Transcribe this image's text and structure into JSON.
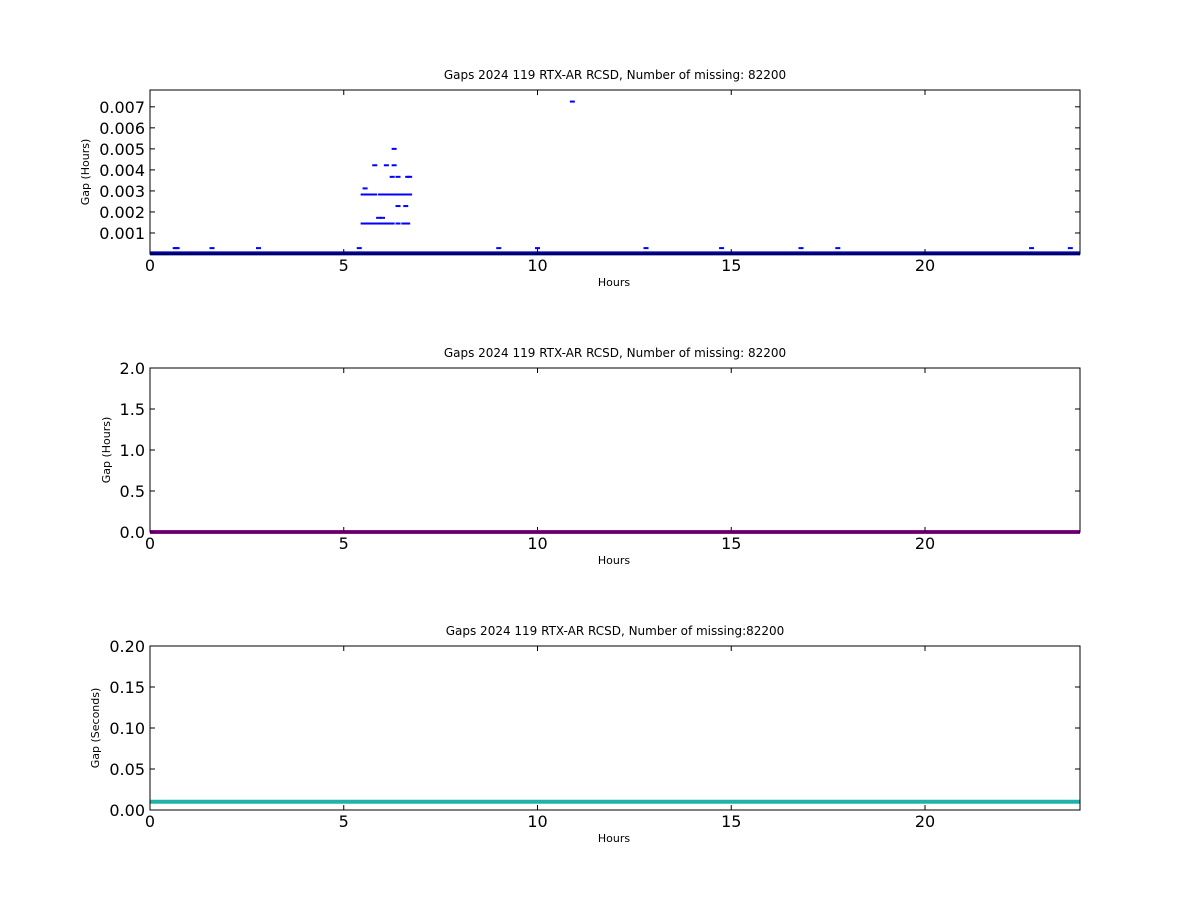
{
  "chart_data": [
    {
      "type": "scatter",
      "title": "Gaps 2024 119 RTX-AR  RCSD, Number of missing: 82200",
      "xlabel": "Hours",
      "ylabel": "Gap (Hours)",
      "xlim": [
        0,
        24
      ],
      "ylim": [
        0,
        0.0078
      ],
      "xticks": [
        0,
        5,
        10,
        15,
        20
      ],
      "xtick_labels": [
        "0",
        "5",
        "10",
        "15",
        "20"
      ],
      "yticks": [
        0.001,
        0.002,
        0.003,
        0.004,
        0.005,
        0.006,
        0.007
      ],
      "ytick_labels": [
        "0.001",
        "0.002",
        "0.003",
        "0.004",
        "0.005",
        "0.006",
        "0.007"
      ],
      "grid": false,
      "color": "#0000ff",
      "baseline": {
        "y": 3e-05,
        "x": [
          0,
          24
        ],
        "color": "#0000b0"
      },
      "points": [
        [
          0.65,
          0.00028
        ],
        [
          0.7,
          0.00028
        ],
        [
          1.6,
          0.00028
        ],
        [
          2.8,
          0.00028
        ],
        [
          5.4,
          0.00028
        ],
        [
          9.0,
          0.00028
        ],
        [
          10.0,
          0.00028
        ],
        [
          12.8,
          0.00028
        ],
        [
          14.75,
          0.00028
        ],
        [
          16.8,
          0.00028
        ],
        [
          17.75,
          0.00028
        ],
        [
          22.75,
          0.00028
        ],
        [
          23.75,
          0.00028
        ],
        [
          10.9,
          0.00725
        ],
        [
          6.3,
          0.005
        ],
        [
          5.8,
          0.00422
        ],
        [
          6.1,
          0.00422
        ],
        [
          6.3,
          0.00422
        ],
        [
          6.25,
          0.00367
        ],
        [
          6.4,
          0.00367
        ],
        [
          6.65,
          0.00367
        ],
        [
          6.7,
          0.00367
        ],
        [
          5.55,
          0.00312
        ],
        [
          5.5,
          0.00283
        ],
        [
          5.55,
          0.00283
        ],
        [
          5.6,
          0.00283
        ],
        [
          5.65,
          0.00283
        ],
        [
          5.7,
          0.00283
        ],
        [
          5.75,
          0.00283
        ],
        [
          5.8,
          0.00283
        ],
        [
          5.95,
          0.00283
        ],
        [
          6.0,
          0.00283
        ],
        [
          6.05,
          0.00283
        ],
        [
          6.1,
          0.00283
        ],
        [
          6.15,
          0.00283
        ],
        [
          6.2,
          0.00283
        ],
        [
          6.25,
          0.00283
        ],
        [
          6.3,
          0.00283
        ],
        [
          6.35,
          0.00283
        ],
        [
          6.4,
          0.00283
        ],
        [
          6.45,
          0.00283
        ],
        [
          6.5,
          0.00283
        ],
        [
          6.55,
          0.00283
        ],
        [
          6.6,
          0.00283
        ],
        [
          6.65,
          0.00283
        ],
        [
          6.7,
          0.00283
        ],
        [
          6.4,
          0.00228
        ],
        [
          6.6,
          0.00228
        ],
        [
          5.9,
          0.00172
        ],
        [
          6.0,
          0.00172
        ],
        [
          5.5,
          0.00145
        ],
        [
          5.55,
          0.00145
        ],
        [
          5.6,
          0.00145
        ],
        [
          5.65,
          0.00145
        ],
        [
          5.7,
          0.00145
        ],
        [
          5.75,
          0.00145
        ],
        [
          5.8,
          0.00145
        ],
        [
          5.85,
          0.00145
        ],
        [
          5.9,
          0.00145
        ],
        [
          5.95,
          0.00145
        ],
        [
          6.0,
          0.00145
        ],
        [
          6.05,
          0.00145
        ],
        [
          6.1,
          0.00145
        ],
        [
          6.15,
          0.00145
        ],
        [
          6.2,
          0.00145
        ],
        [
          6.25,
          0.00145
        ],
        [
          6.4,
          0.00145
        ],
        [
          6.55,
          0.00145
        ],
        [
          6.6,
          0.00145
        ],
        [
          6.65,
          0.00145
        ]
      ]
    },
    {
      "type": "line",
      "title": "Gaps 2024 119 RTX-AR  RCSD, Number of missing: 82200",
      "xlabel": "Hours",
      "ylabel": "Gap (Hours)",
      "xlim": [
        0,
        24
      ],
      "ylim": [
        0,
        2.0
      ],
      "xticks": [
        0,
        5,
        10,
        15,
        20
      ],
      "xtick_labels": [
        "0",
        "5",
        "10",
        "15",
        "20"
      ],
      "yticks": [
        0.0,
        0.5,
        1.0,
        1.5,
        2.0
      ],
      "ytick_labels": [
        "0.0",
        "0.5",
        "1.0",
        "1.5",
        "2.0"
      ],
      "grid": false,
      "color": "#a000a0",
      "line": {
        "x": [
          0,
          24
        ],
        "y": [
          0.0,
          0.0
        ]
      }
    },
    {
      "type": "line",
      "title": "Gaps 2024 119 RTX-AR  RCSD, Number of missing:82200",
      "xlabel": "Hours",
      "ylabel": "Gap (Seconds)",
      "xlim": [
        0,
        24
      ],
      "ylim": [
        0,
        0.2
      ],
      "xticks": [
        0,
        5,
        10,
        15,
        20
      ],
      "xtick_labels": [
        "0",
        "5",
        "10",
        "15",
        "20"
      ],
      "yticks": [
        0.0,
        0.05,
        0.1,
        0.15,
        0.2
      ],
      "ytick_labels": [
        "0.00",
        "0.05",
        "0.10",
        "0.15",
        "0.20"
      ],
      "grid": false,
      "color": "#20b2aa",
      "line": {
        "x": [
          0,
          24
        ],
        "y": [
          0.01,
          0.01
        ]
      }
    }
  ]
}
